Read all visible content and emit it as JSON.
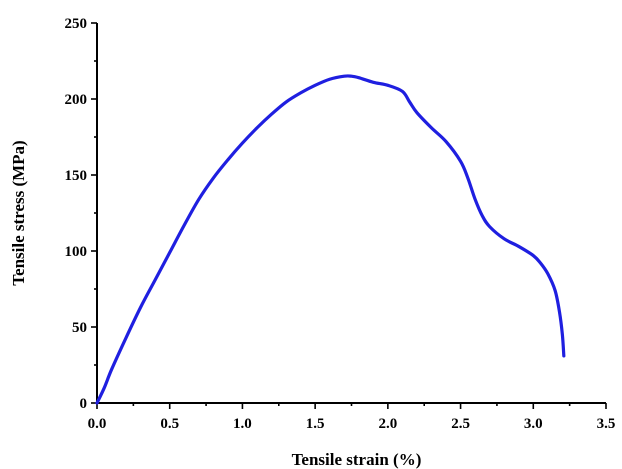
{
  "chart_data": {
    "type": "line",
    "title": "",
    "xlabel": "Tensile strain (%)",
    "ylabel": "Tensile stress (MPa)",
    "xlim": [
      0,
      3.5
    ],
    "ylim": [
      0,
      250
    ],
    "xticks": [
      "0.0",
      "0.5",
      "1.0",
      "1.5",
      "2.0",
      "2.5",
      "3.0",
      "3.5"
    ],
    "yticks": [
      "0",
      "50",
      "100",
      "150",
      "200",
      "250"
    ],
    "grid": false,
    "legend": "none",
    "series": [
      {
        "color": "#1f1fe0",
        "x": [
          0.0,
          0.05,
          0.1,
          0.2,
          0.3,
          0.4,
          0.5,
          0.6,
          0.7,
          0.8,
          0.9,
          1.0,
          1.1,
          1.2,
          1.3,
          1.4,
          1.5,
          1.6,
          1.7,
          1.75,
          1.8,
          1.9,
          2.0,
          2.1,
          2.15,
          2.2,
          2.3,
          2.4,
          2.5,
          2.55,
          2.6,
          2.65,
          2.7,
          2.8,
          2.9,
          3.0,
          3.05,
          3.1,
          3.15,
          3.18,
          3.2,
          3.21
        ],
        "y": [
          0,
          10,
          22,
          43,
          63,
          81,
          99,
          117,
          134,
          148,
          160,
          171,
          181,
          190,
          198,
          204,
          209,
          213,
          215,
          215,
          214,
          211,
          209,
          205,
          198,
          191,
          181,
          172,
          159,
          148,
          134,
          123,
          116,
          108,
          103,
          97,
          92,
          85,
          74,
          60,
          45,
          31
        ]
      }
    ]
  }
}
